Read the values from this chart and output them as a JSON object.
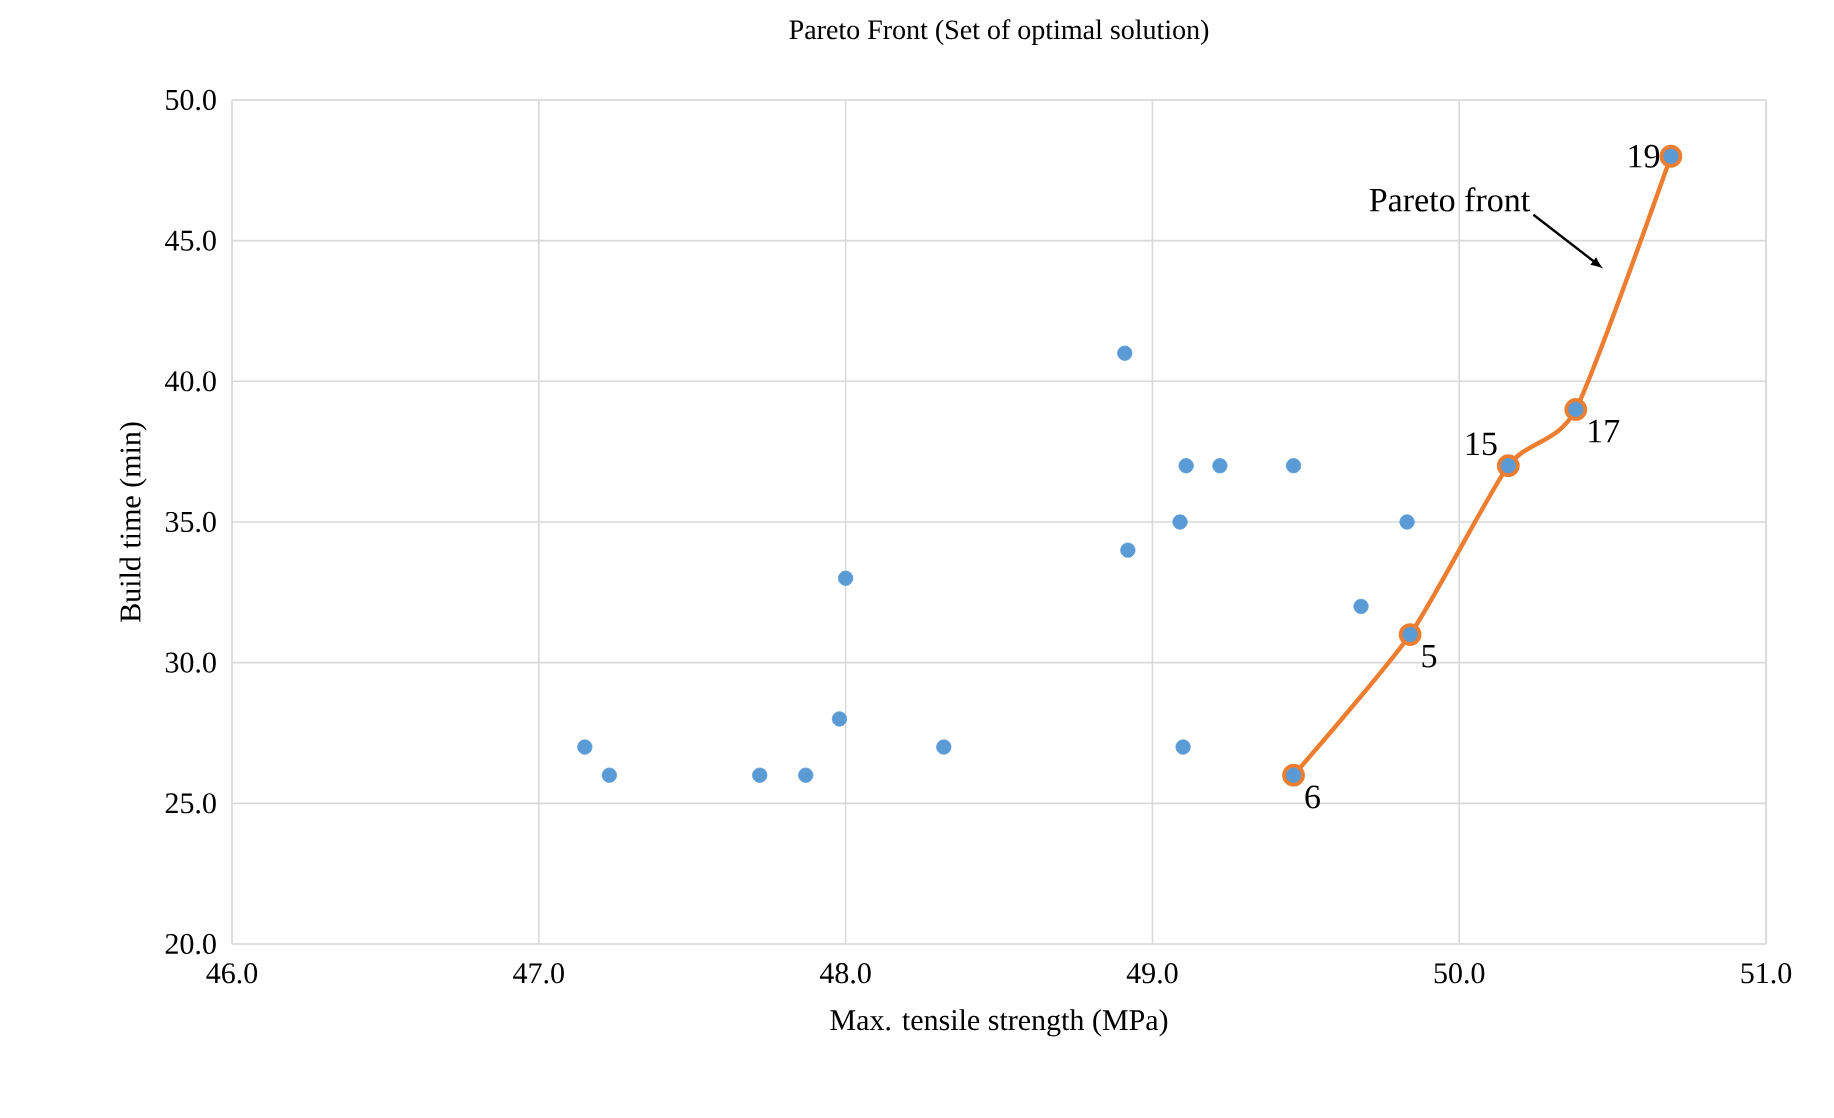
{
  "chart_data": {
    "type": "scatter",
    "title": "Pareto Front (Set of optimal solution)",
    "xlabel": "Max. tensile strength (MPa)",
    "ylabel": "Build time (min)",
    "xlim": [
      46,
      51
    ],
    "ylim": [
      20,
      50
    ],
    "xticks": [
      {
        "value": 46,
        "label": "46.0"
      },
      {
        "value": 47,
        "label": "47.0"
      },
      {
        "value": 48,
        "label": "48.0"
      },
      {
        "value": 49,
        "label": "49.0"
      },
      {
        "value": 50,
        "label": "50.0"
      },
      {
        "value": 51,
        "label": "51.0"
      }
    ],
    "yticks": [
      {
        "value": 20,
        "label": "20.0"
      },
      {
        "value": 25,
        "label": "25.0"
      },
      {
        "value": 30,
        "label": "30.0"
      },
      {
        "value": 35,
        "label": "35.0"
      },
      {
        "value": 40,
        "label": "40.0"
      },
      {
        "value": 45,
        "label": "45.0"
      },
      {
        "value": 50,
        "label": "50.0"
      }
    ],
    "grid": true,
    "marker": "circle",
    "series": [
      {
        "type": "line",
        "color": "#ed7d31",
        "line_style": "solid",
        "x": [
          49.46,
          49.84,
          50.16,
          50.38,
          50.69
        ],
        "values": [
          26,
          31,
          37,
          39,
          48
        ]
      },
      {
        "color": "#5b9bd5",
        "x": [
          47.15,
          47.23,
          47.72,
          47.87,
          47.98,
          48.0,
          48.32,
          48.91,
          48.92,
          49.11,
          49.09,
          49.1,
          49.22,
          49.46,
          49.46,
          49.68,
          49.83,
          49.84,
          50.16,
          50.38,
          50.69
        ],
        "values": [
          27,
          26,
          26,
          26,
          28,
          33,
          27,
          41,
          34,
          37,
          35,
          27,
          37,
          37,
          26,
          32,
          35,
          31,
          37,
          39,
          48
        ]
      }
    ],
    "annotations": [
      "Pareto front",
      {
        "text": "19",
        "x": 50.69,
        "y": 48
      },
      {
        "text": "15",
        "x": 50.16,
        "y": 37
      },
      {
        "text": "17",
        "x": 50.38,
        "y": 39
      },
      {
        "text": "5",
        "x": 49.84,
        "y": 31
      },
      {
        "text": "6",
        "x": 49.46,
        "y": 26
      }
    ]
  }
}
